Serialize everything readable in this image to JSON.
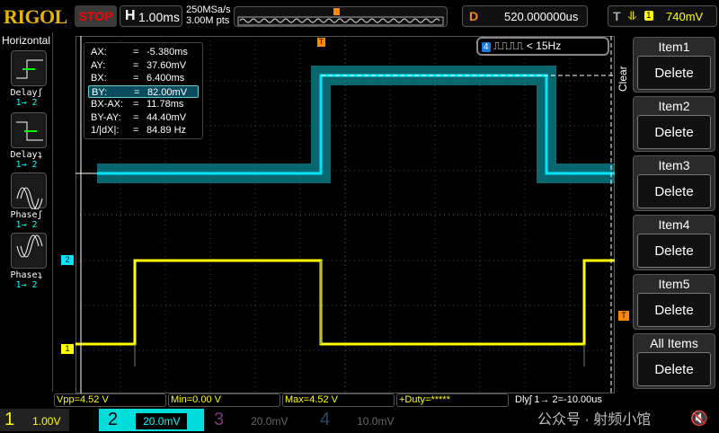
{
  "header": {
    "brand": "RIGOL",
    "run_state": "STOP",
    "h_label": "H",
    "timebase": "1.00ms",
    "sample_rate": "250MSa/s",
    "memory_depth": "3.00M pts",
    "d_label": "D",
    "delay": "520.000000us",
    "t_label": "T",
    "trigger_source": "1",
    "trigger_level": "740mV"
  },
  "sidebar": {
    "title": "Horizontal",
    "items": [
      {
        "label": "Delayʃ",
        "ch": "1→ 2",
        "icon": "rising-delay-icon"
      },
      {
        "label": "Delayʇ",
        "ch": "1→ 2",
        "icon": "falling-delay-icon"
      },
      {
        "label": "Phaseʃ",
        "ch": "1→ 2",
        "icon": "rising-phase-icon"
      },
      {
        "label": "Phaseʇ",
        "ch": "1→ 2",
        "icon": "falling-phase-icon"
      }
    ]
  },
  "cursor": {
    "rows": [
      {
        "k": "AX:",
        "v": "-5.380ms"
      },
      {
        "k": "AY:",
        "v": "37.60mV"
      },
      {
        "k": "BX:",
        "v": "6.400ms"
      },
      {
        "k": "BY:",
        "v": "82.00mV",
        "selected": true
      },
      {
        "k": "BX-AX:",
        "v": "11.78ms"
      },
      {
        "k": "BY-AY:",
        "v": "44.40mV"
      },
      {
        "k": "1/|dX|:",
        "v": "84.89 Hz"
      }
    ],
    "eq": "="
  },
  "freq_badge": {
    "channel": "4",
    "text": "< 15Hz"
  },
  "markers": {
    "ch2": "2",
    "ch1": "1",
    "trig": "T"
  },
  "menu": {
    "clear": "Clear",
    "items": [
      {
        "title": "Item1",
        "action": "Delete"
      },
      {
        "title": "Item2",
        "action": "Delete"
      },
      {
        "title": "Item3",
        "action": "Delete"
      },
      {
        "title": "Item4",
        "action": "Delete"
      },
      {
        "title": "Item5",
        "action": "Delete"
      },
      {
        "title": "All Items",
        "action": "Delete"
      }
    ]
  },
  "measurements": [
    "Vpp=4.52 V",
    "Min=0.00 V",
    "Max=4.52 V",
    "+Duty=*****"
  ],
  "delay_meas": "Dlyʃ 1→ 2=-10.00us",
  "watermark": "公众号 · 射频小馆",
  "channels": [
    {
      "num": "1",
      "scale": "1.00V",
      "color": "#ffff00"
    },
    {
      "num": "2",
      "scale": "20.0mV",
      "color": "#00e5ff"
    },
    {
      "num": "3",
      "scale": "20.0mV",
      "color": "#7a3a7a"
    },
    {
      "num": "4",
      "scale": "10.0mV",
      "color": "#2a4a6a"
    }
  ]
}
